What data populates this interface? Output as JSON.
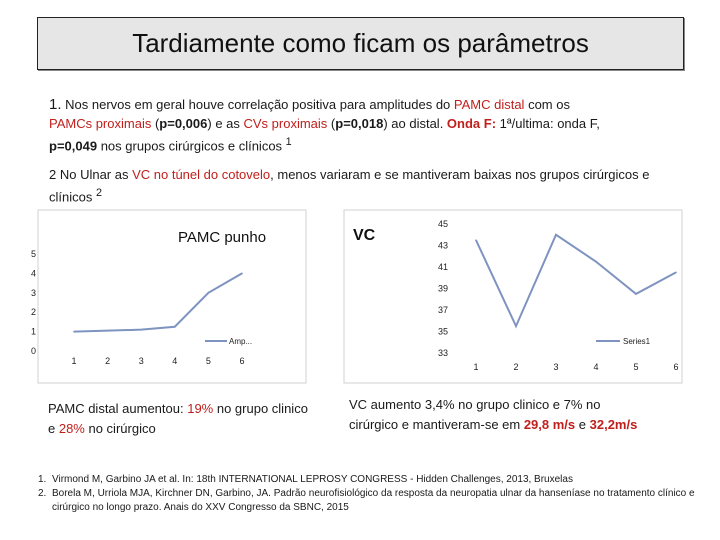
{
  "title": "Tardiamente como ficam os parâmetros",
  "para1": {
    "num": "1.",
    "t1": " Nos nervos em geral houve correlação positiva para amplitudes do ",
    "r1": "PAMC distal",
    "t2": " com os",
    "r2": "PAMCs proximais",
    "t3": " (",
    "b1": "p=0,006",
    "t4": ") e as ",
    "r3": "CVs proximais",
    "t5": " (",
    "b2": "p=0,018",
    "t6": ") ao distal. ",
    "r4": "Onda F:",
    "t7": " 1ª/ultima: onda F,",
    "b3": "p=0,049",
    "t8": " nos grupos cirúrgicos e clínicos ",
    "sup": "1"
  },
  "para2": {
    "t1": "2 No Ulnar as ",
    "r1": "VC no túnel do cotovelo",
    "t2": ", menos variaram e se mantiveram baixas nos grupos cirúrgicos e clínicos  ",
    "sup": "2"
  },
  "chart_data": [
    {
      "type": "line",
      "title": "PAMC punho",
      "x": [
        1,
        2,
        3,
        4,
        5,
        6
      ],
      "series": [
        {
          "name": "Amp...",
          "values": [
            1,
            1.05,
            1.1,
            1.25,
            3.0,
            4.0
          ]
        }
      ],
      "ylim": [
        0,
        5
      ],
      "y_ticks": [
        "0",
        "1",
        "2",
        "3",
        "4",
        "5"
      ],
      "x_ticks": [
        "1",
        "2",
        "3",
        "4",
        "5",
        "6"
      ],
      "legend": "right",
      "color": "#7f93c0"
    },
    {
      "type": "line",
      "title": "VC",
      "x": [
        1,
        2,
        3,
        4,
        5,
        6
      ],
      "series": [
        {
          "name": "Series1",
          "values": [
            43.5,
            35.5,
            44,
            41.5,
            38.5,
            40.5
          ]
        }
      ],
      "ylim": [
        33,
        45
      ],
      "y_ticks": [
        "33",
        "35",
        "37",
        "39",
        "41",
        "43",
        "45"
      ],
      "x_ticks": [
        "1",
        "2",
        "3",
        "4",
        "5",
        "6"
      ],
      "legend": "right",
      "color": "#7f93c0"
    }
  ],
  "caption_left": {
    "t1": "PAMC distal aumentou: ",
    "r1": "19%",
    "t2": " no grupo clinico e ",
    "r2": "28%",
    "t3": " no cirúrgico"
  },
  "caption_right": {
    "t1": "VC aumento 3,4% no grupo clinico e 7% no cirúrgico e mantiveram-se em ",
    "r1": "29,8 m/s",
    "t2": "  e ",
    "r2": "32,2m/s"
  },
  "refs": [
    {
      "num": "1.",
      "text": "Virmond M, Garbino JA et al. In: 18th INTERNATIONAL LEPROSY CONGRESS - Hidden Challenges, 2013,  Bruxelas"
    },
    {
      "num": "2.",
      "text": "Borela M, Urriola MJA, Kirchner DN, Garbino, JA. Padrão neurofisiológico da resposta da neuropatia ulnar da hanseníase no tratamento clínico e cirúrgico no longo prazo. Anais do XXV Congresso da SBNC, 2015"
    }
  ]
}
